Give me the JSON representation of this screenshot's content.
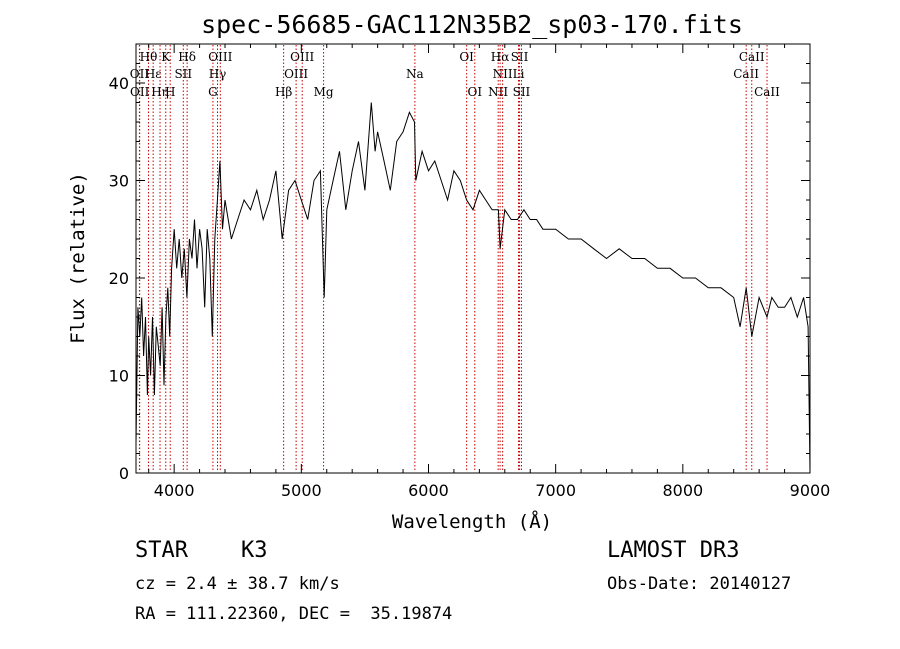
{
  "chart_data": {
    "type": "line",
    "title": "spec-56685-GAC112N35B2_sp03-170.fits",
    "xlabel": "Wavelength (Å)",
    "ylabel": "Flux (relative)",
    "xlim": [
      3700,
      9000
    ],
    "ylim": [
      0,
      44
    ],
    "xticks": [
      4000,
      5000,
      6000,
      7000,
      8000,
      9000
    ],
    "yticks": [
      0,
      10,
      20,
      30,
      40
    ],
    "grid": false,
    "line_color": "#000000",
    "marker_color": "#cc0000",
    "series": [
      {
        "x": [
          3700,
          3715,
          3730,
          3745,
          3760,
          3775,
          3790,
          3800,
          3815,
          3830,
          3845,
          3860,
          3875,
          3890,
          3905,
          3920,
          3935,
          3950,
          3965,
          3980,
          4000,
          4020,
          4040,
          4060,
          4080,
          4100,
          4120,
          4140,
          4160,
          4180,
          4200,
          4220,
          4240,
          4260,
          4280,
          4300,
          4320,
          4340,
          4360,
          4380,
          4400,
          4450,
          4500,
          4550,
          4600,
          4650,
          4700,
          4750,
          4800,
          4850,
          4880,
          4900,
          4950,
          5000,
          5050,
          5100,
          5150,
          5180,
          5200,
          5250,
          5300,
          5350,
          5400,
          5450,
          5500,
          5550,
          5580,
          5600,
          5650,
          5700,
          5750,
          5800,
          5850,
          5890,
          5900,
          5950,
          6000,
          6050,
          6100,
          6150,
          6200,
          6250,
          6300,
          6350,
          6400,
          6450,
          6500,
          6550,
          6563,
          6600,
          6650,
          6700,
          6750,
          6800,
          6850,
          6900,
          7000,
          7100,
          7200,
          7300,
          7400,
          7500,
          7600,
          7700,
          7800,
          7900,
          8000,
          8100,
          8200,
          8300,
          8400,
          8450,
          8498,
          8542,
          8600,
          8662,
          8700,
          8750,
          8800,
          8850,
          8900,
          8950,
          8985,
          9000
        ],
        "y": [
          3,
          17,
          14,
          18,
          12,
          16,
          8,
          14,
          10,
          16,
          8,
          15,
          13,
          11,
          17,
          9,
          16,
          19,
          14,
          21,
          25,
          21,
          24,
          20,
          23,
          18,
          24,
          22,
          26,
          21,
          25,
          23,
          17,
          25,
          22,
          14,
          24,
          28,
          32,
          25,
          28,
          24,
          26,
          28,
          27,
          29,
          26,
          28,
          31,
          24,
          27,
          29,
          30,
          28,
          26,
          30,
          31,
          18,
          27,
          30,
          33,
          27,
          31,
          34,
          29,
          38,
          33,
          35,
          32,
          29,
          34,
          35,
          37,
          36,
          30,
          33,
          31,
          32,
          30,
          28,
          31,
          30,
          28,
          27,
          29,
          28,
          27,
          27,
          23,
          27,
          26,
          26,
          27,
          26,
          26,
          25,
          25,
          24,
          24,
          23,
          22,
          23,
          22,
          22,
          21,
          21,
          20,
          20,
          19,
          19,
          18,
          15,
          19,
          14,
          18,
          16,
          18,
          17,
          17,
          18,
          16,
          18,
          15,
          0
        ]
      }
    ],
    "line_markers": [
      {
        "label": "Hθ",
        "x": 3798,
        "row": 0
      },
      {
        "label": "OII",
        "x": 3727,
        "row": 1
      },
      {
        "label": "OII",
        "x": 3729,
        "row": 2
      },
      {
        "label": "Hε",
        "x": 3835,
        "row": 1
      },
      {
        "label": "Hη",
        "x": 3889,
        "row": 2
      },
      {
        "label": "K",
        "x": 3934,
        "row": 0
      },
      {
        "label": "H",
        "x": 3969,
        "row": 2
      },
      {
        "label": "SII",
        "x": 4072,
        "row": 1
      },
      {
        "label": "Hδ",
        "x": 4102,
        "row": 0
      },
      {
        "label": "G",
        "x": 4305,
        "row": 2
      },
      {
        "label": "Hγ",
        "x": 4341,
        "row": 1
      },
      {
        "label": "OIII",
        "x": 4363,
        "row": 0
      },
      {
        "label": "Hβ",
        "x": 4861,
        "row": 2
      },
      {
        "label": "OIII",
        "x": 4959,
        "row": 1
      },
      {
        "label": "OIII",
        "x": 5007,
        "row": 0
      },
      {
        "label": "Mg",
        "x": 5175,
        "row": 2
      },
      {
        "label": "Na",
        "x": 5893,
        "row": 1
      },
      {
        "label": "OI",
        "x": 6300,
        "row": 0
      },
      {
        "label": "OI",
        "x": 6364,
        "row": 2
      },
      {
        "label": "NII",
        "x": 6548,
        "row": 2
      },
      {
        "label": "NII",
        "x": 6583,
        "row": 1
      },
      {
        "label": "Hα",
        "x": 6563,
        "row": 0
      },
      {
        "label": "Li",
        "x": 6708,
        "row": 1
      },
      {
        "label": "SII",
        "x": 6716,
        "row": 0
      },
      {
        "label": "SII",
        "x": 6731,
        "row": 2
      },
      {
        "label": "CaII",
        "x": 8498,
        "row": 1
      },
      {
        "label": "CaII",
        "x": 8542,
        "row": 0
      },
      {
        "label": "CaII",
        "x": 8662,
        "row": 2
      }
    ]
  },
  "meta": {
    "object_type": "STAR    K3",
    "survey": "LAMOST DR3",
    "cz": "cz = 2.4 ± 38.7 km/s",
    "obs_date": "Obs-Date: 20140127",
    "radec": "RA = 111.22360, DEC =  35.19874"
  }
}
